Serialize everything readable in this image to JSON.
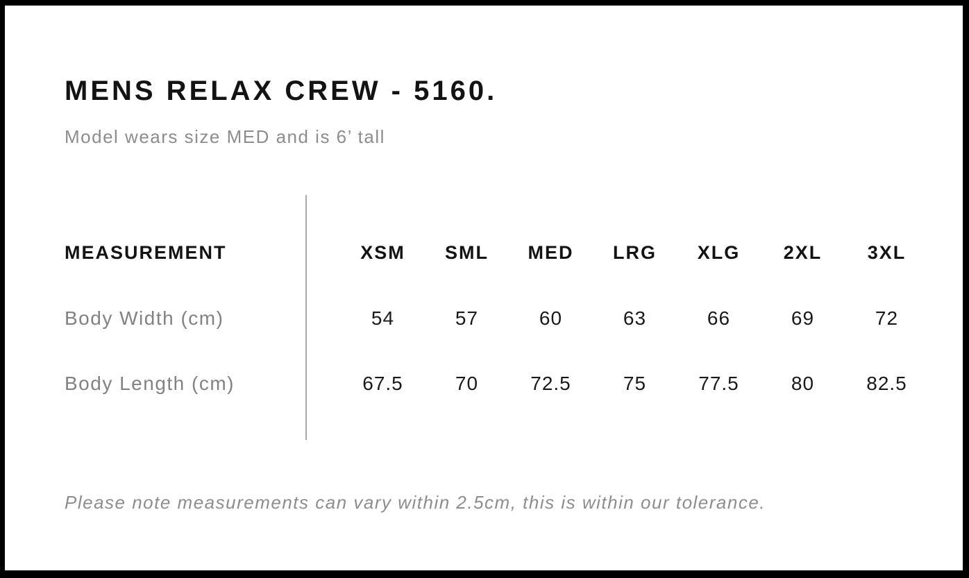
{
  "header": {
    "title": "MENS RELAX CREW - 5160.",
    "subtitle": "Model wears size MED and is 6’ tall"
  },
  "table": {
    "measurement_header": "MEASUREMENT",
    "sizes": [
      "XSM",
      "SML",
      "MED",
      "LRG",
      "XLG",
      "2XL",
      "3XL"
    ],
    "rows": [
      {
        "label": "Body Width (cm)",
        "values": [
          "54",
          "57",
          "60",
          "63",
          "66",
          "69",
          "72"
        ]
      },
      {
        "label": "Body Length (cm)",
        "values": [
          "67.5",
          "70",
          "72.5",
          "75",
          "77.5",
          "80",
          "82.5"
        ]
      }
    ]
  },
  "footer": {
    "note": "Please note measurements can vary within 2.5cm, this is within our tolerance."
  },
  "colors": {
    "border": "#000000",
    "text_primary": "#131313",
    "text_secondary": "#8d8d8d",
    "row_label_gray": "#828282",
    "divider_gray": "#a8a8a8",
    "background": "#ffffff"
  }
}
